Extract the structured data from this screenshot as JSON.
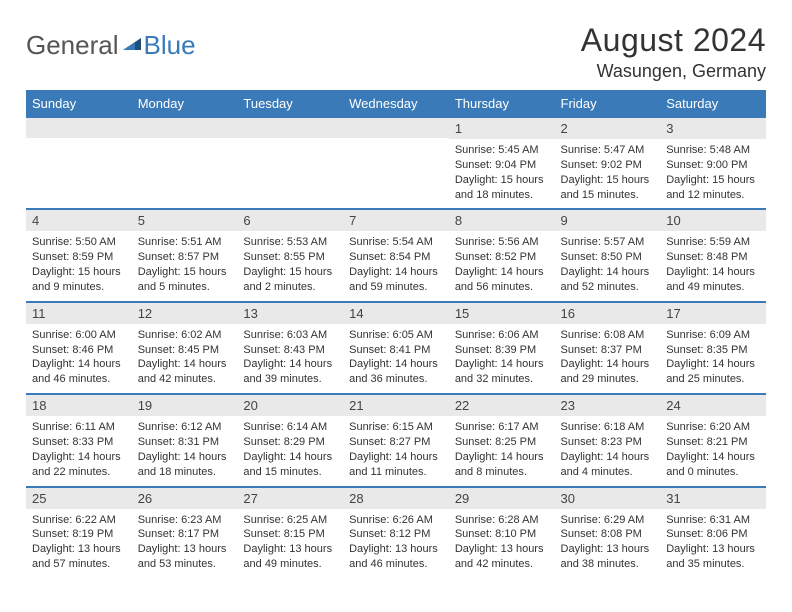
{
  "logo": {
    "word1": "General",
    "word2": "Blue"
  },
  "title": "August 2024",
  "location": "Wasungen, Germany",
  "header_bg": "#3a7ab8",
  "weekdays": [
    "Sunday",
    "Monday",
    "Tuesday",
    "Wednesday",
    "Thursday",
    "Friday",
    "Saturday"
  ],
  "weeks": [
    [
      null,
      null,
      null,
      null,
      {
        "n": "1",
        "sunrise": "Sunrise: 5:45 AM",
        "sunset": "Sunset: 9:04 PM",
        "daylight": "Daylight: 15 hours and 18 minutes."
      },
      {
        "n": "2",
        "sunrise": "Sunrise: 5:47 AM",
        "sunset": "Sunset: 9:02 PM",
        "daylight": "Daylight: 15 hours and 15 minutes."
      },
      {
        "n": "3",
        "sunrise": "Sunrise: 5:48 AM",
        "sunset": "Sunset: 9:00 PM",
        "daylight": "Daylight: 15 hours and 12 minutes."
      }
    ],
    [
      {
        "n": "4",
        "sunrise": "Sunrise: 5:50 AM",
        "sunset": "Sunset: 8:59 PM",
        "daylight": "Daylight: 15 hours and 9 minutes."
      },
      {
        "n": "5",
        "sunrise": "Sunrise: 5:51 AM",
        "sunset": "Sunset: 8:57 PM",
        "daylight": "Daylight: 15 hours and 5 minutes."
      },
      {
        "n": "6",
        "sunrise": "Sunrise: 5:53 AM",
        "sunset": "Sunset: 8:55 PM",
        "daylight": "Daylight: 15 hours and 2 minutes."
      },
      {
        "n": "7",
        "sunrise": "Sunrise: 5:54 AM",
        "sunset": "Sunset: 8:54 PM",
        "daylight": "Daylight: 14 hours and 59 minutes."
      },
      {
        "n": "8",
        "sunrise": "Sunrise: 5:56 AM",
        "sunset": "Sunset: 8:52 PM",
        "daylight": "Daylight: 14 hours and 56 minutes."
      },
      {
        "n": "9",
        "sunrise": "Sunrise: 5:57 AM",
        "sunset": "Sunset: 8:50 PM",
        "daylight": "Daylight: 14 hours and 52 minutes."
      },
      {
        "n": "10",
        "sunrise": "Sunrise: 5:59 AM",
        "sunset": "Sunset: 8:48 PM",
        "daylight": "Daylight: 14 hours and 49 minutes."
      }
    ],
    [
      {
        "n": "11",
        "sunrise": "Sunrise: 6:00 AM",
        "sunset": "Sunset: 8:46 PM",
        "daylight": "Daylight: 14 hours and 46 minutes."
      },
      {
        "n": "12",
        "sunrise": "Sunrise: 6:02 AM",
        "sunset": "Sunset: 8:45 PM",
        "daylight": "Daylight: 14 hours and 42 minutes."
      },
      {
        "n": "13",
        "sunrise": "Sunrise: 6:03 AM",
        "sunset": "Sunset: 8:43 PM",
        "daylight": "Daylight: 14 hours and 39 minutes."
      },
      {
        "n": "14",
        "sunrise": "Sunrise: 6:05 AM",
        "sunset": "Sunset: 8:41 PM",
        "daylight": "Daylight: 14 hours and 36 minutes."
      },
      {
        "n": "15",
        "sunrise": "Sunrise: 6:06 AM",
        "sunset": "Sunset: 8:39 PM",
        "daylight": "Daylight: 14 hours and 32 minutes."
      },
      {
        "n": "16",
        "sunrise": "Sunrise: 6:08 AM",
        "sunset": "Sunset: 8:37 PM",
        "daylight": "Daylight: 14 hours and 29 minutes."
      },
      {
        "n": "17",
        "sunrise": "Sunrise: 6:09 AM",
        "sunset": "Sunset: 8:35 PM",
        "daylight": "Daylight: 14 hours and 25 minutes."
      }
    ],
    [
      {
        "n": "18",
        "sunrise": "Sunrise: 6:11 AM",
        "sunset": "Sunset: 8:33 PM",
        "daylight": "Daylight: 14 hours and 22 minutes."
      },
      {
        "n": "19",
        "sunrise": "Sunrise: 6:12 AM",
        "sunset": "Sunset: 8:31 PM",
        "daylight": "Daylight: 14 hours and 18 minutes."
      },
      {
        "n": "20",
        "sunrise": "Sunrise: 6:14 AM",
        "sunset": "Sunset: 8:29 PM",
        "daylight": "Daylight: 14 hours and 15 minutes."
      },
      {
        "n": "21",
        "sunrise": "Sunrise: 6:15 AM",
        "sunset": "Sunset: 8:27 PM",
        "daylight": "Daylight: 14 hours and 11 minutes."
      },
      {
        "n": "22",
        "sunrise": "Sunrise: 6:17 AM",
        "sunset": "Sunset: 8:25 PM",
        "daylight": "Daylight: 14 hours and 8 minutes."
      },
      {
        "n": "23",
        "sunrise": "Sunrise: 6:18 AM",
        "sunset": "Sunset: 8:23 PM",
        "daylight": "Daylight: 14 hours and 4 minutes."
      },
      {
        "n": "24",
        "sunrise": "Sunrise: 6:20 AM",
        "sunset": "Sunset: 8:21 PM",
        "daylight": "Daylight: 14 hours and 0 minutes."
      }
    ],
    [
      {
        "n": "25",
        "sunrise": "Sunrise: 6:22 AM",
        "sunset": "Sunset: 8:19 PM",
        "daylight": "Daylight: 13 hours and 57 minutes."
      },
      {
        "n": "26",
        "sunrise": "Sunrise: 6:23 AM",
        "sunset": "Sunset: 8:17 PM",
        "daylight": "Daylight: 13 hours and 53 minutes."
      },
      {
        "n": "27",
        "sunrise": "Sunrise: 6:25 AM",
        "sunset": "Sunset: 8:15 PM",
        "daylight": "Daylight: 13 hours and 49 minutes."
      },
      {
        "n": "28",
        "sunrise": "Sunrise: 6:26 AM",
        "sunset": "Sunset: 8:12 PM",
        "daylight": "Daylight: 13 hours and 46 minutes."
      },
      {
        "n": "29",
        "sunrise": "Sunrise: 6:28 AM",
        "sunset": "Sunset: 8:10 PM",
        "daylight": "Daylight: 13 hours and 42 minutes."
      },
      {
        "n": "30",
        "sunrise": "Sunrise: 6:29 AM",
        "sunset": "Sunset: 8:08 PM",
        "daylight": "Daylight: 13 hours and 38 minutes."
      },
      {
        "n": "31",
        "sunrise": "Sunrise: 6:31 AM",
        "sunset": "Sunset: 8:06 PM",
        "daylight": "Daylight: 13 hours and 35 minutes."
      }
    ]
  ]
}
